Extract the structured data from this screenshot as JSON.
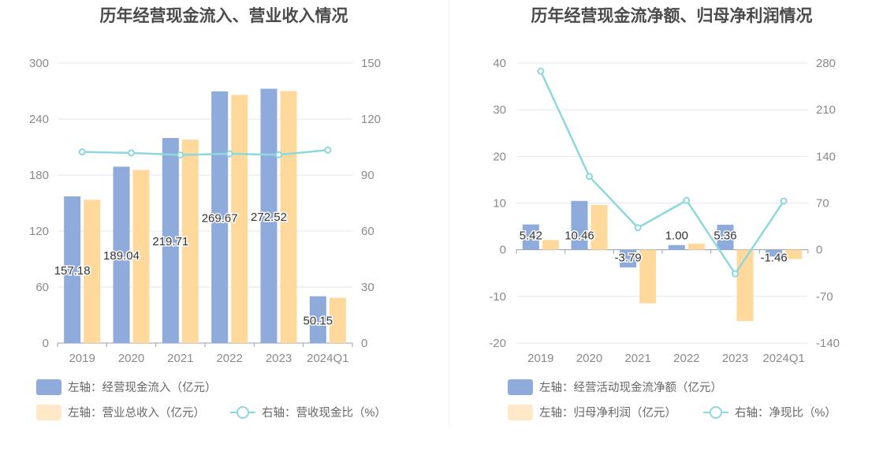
{
  "colors": {
    "bar_blue": "#8eabdb",
    "bar_orange": "#ffd99b",
    "line": "#8dd8dc",
    "legend_orange": "#ffe9c8"
  },
  "left": {
    "title": "历年经营现金流入、营业收入情况",
    "legend": [
      "左轴：经营现金流入（亿元）",
      "左轴：营业总收入（亿元）",
      "右轴：营收现金比（%）"
    ]
  },
  "right": {
    "title": "历年经营现金流净额、归母净利润情况",
    "legend": [
      "左轴：经营活动现金流净额（亿元）",
      "左轴：归母净利润（亿元）",
      "右轴：净现比（%）"
    ]
  },
  "chart_data": [
    {
      "type": "bar",
      "title": "历年经营现金流入、营业收入情况",
      "categories": [
        "2019",
        "2020",
        "2021",
        "2022",
        "2023",
        "2024Q1"
      ],
      "y_left": {
        "min": 0,
        "max": 300,
        "ticks": [
          "0",
          "60",
          "120",
          "180",
          "240",
          "300"
        ]
      },
      "y_right": {
        "min": 0,
        "max": 150,
        "ticks": [
          "0",
          "30",
          "60",
          "90",
          "120",
          "150"
        ]
      },
      "series": [
        {
          "name": "左轴：经营现金流入（亿元）",
          "type": "bar",
          "axis": "left",
          "values": [
            157.18,
            189.04,
            219.71,
            269.67,
            272.52,
            50.15
          ],
          "labels": [
            "157.18",
            "189.04",
            "219.71",
            "269.67",
            "272.52",
            "50.15"
          ]
        },
        {
          "name": "左轴：营业总收入（亿元）",
          "type": "bar",
          "axis": "left",
          "values": [
            153.5,
            185.5,
            218.0,
            266.0,
            270.0,
            48.5
          ]
        },
        {
          "name": "右轴：营收现金比（%）",
          "type": "line",
          "axis": "right",
          "values": [
            102.4,
            101.9,
            100.8,
            101.4,
            100.9,
            103.4
          ]
        }
      ],
      "grid": true
    },
    {
      "type": "bar",
      "title": "历年经营现金流净额、归母净利润情况",
      "categories": [
        "2019",
        "2020",
        "2021",
        "2022",
        "2023",
        "2024Q1"
      ],
      "y_left": {
        "min": -20,
        "max": 40,
        "ticks": [
          "-20",
          "-10",
          "0",
          "10",
          "20",
          "30",
          "40"
        ]
      },
      "y_right": {
        "min": -140,
        "max": 280,
        "ticks": [
          "-140",
          "-70",
          "0",
          "70",
          "140",
          "210",
          "280"
        ]
      },
      "series": [
        {
          "name": "左轴：经营活动现金流净额（亿元）",
          "type": "bar",
          "axis": "left",
          "values": [
            5.42,
            10.46,
            -3.79,
            1.0,
            5.36,
            -1.46
          ],
          "labels": [
            "5.42",
            "10.46",
            "-3.79",
            "1.00",
            "5.36",
            "-1.46"
          ]
        },
        {
          "name": "左轴：归母净利润（亿元）",
          "type": "bar",
          "axis": "left",
          "values": [
            2.1,
            9.6,
            -11.5,
            1.3,
            -15.3,
            -2.0
          ]
        },
        {
          "name": "右轴：净现比（%）",
          "type": "line",
          "axis": "right",
          "values": [
            268,
            110,
            33,
            74,
            -36,
            73
          ]
        }
      ],
      "grid": true
    }
  ]
}
